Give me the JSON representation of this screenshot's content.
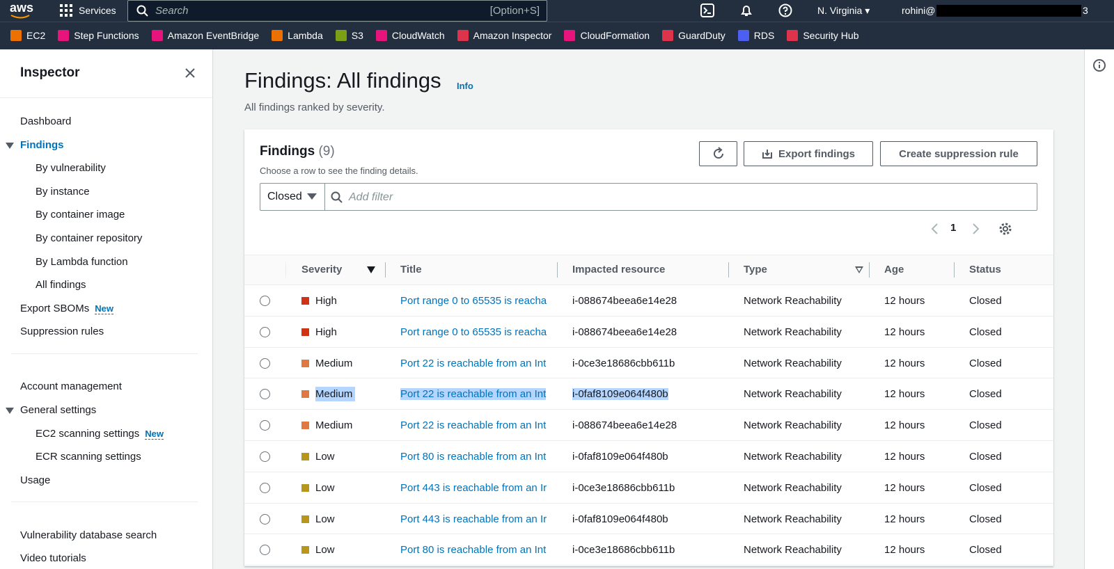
{
  "nav": {
    "logo": "aws",
    "services": "Services",
    "search_placeholder": "Search",
    "search_shortcut": "[Option+S]",
    "region": "N. Virginia",
    "user": "rohini@",
    "user_suffix": "3"
  },
  "favorites": [
    {
      "label": "EC2",
      "color": "#ed7100"
    },
    {
      "label": "Step Functions",
      "color": "#e7157b"
    },
    {
      "label": "Amazon EventBridge",
      "color": "#e7157b"
    },
    {
      "label": "Lambda",
      "color": "#ed7100"
    },
    {
      "label": "S3",
      "color": "#7aa116"
    },
    {
      "label": "CloudWatch",
      "color": "#e7157b"
    },
    {
      "label": "Amazon Inspector",
      "color": "#dd344c"
    },
    {
      "label": "CloudFormation",
      "color": "#e7157b"
    },
    {
      "label": "GuardDuty",
      "color": "#dd344c"
    },
    {
      "label": "RDS",
      "color": "#4d5ef3"
    },
    {
      "label": "Security Hub",
      "color": "#dd344c"
    }
  ],
  "sidebar": {
    "title": "Inspector",
    "sections": [
      [
        {
          "label": "Dashboard"
        },
        {
          "label": "Findings",
          "active": true,
          "children": [
            {
              "label": "By vulnerability"
            },
            {
              "label": "By instance"
            },
            {
              "label": "By container image"
            },
            {
              "label": "By container repository"
            },
            {
              "label": "By Lambda function"
            },
            {
              "label": "All findings"
            }
          ]
        },
        {
          "label": "Export SBOMs",
          "badge": "New"
        },
        {
          "label": "Suppression rules"
        }
      ],
      [
        {
          "label": "Account management"
        },
        {
          "label": "General settings",
          "children": [
            {
              "label": "EC2 scanning settings",
              "badge": "New"
            },
            {
              "label": "ECR scanning settings"
            }
          ]
        },
        {
          "label": "Usage"
        }
      ],
      [
        {
          "label": "Vulnerability database search"
        },
        {
          "label": "Video tutorials"
        }
      ]
    ]
  },
  "page": {
    "title": "Findings: All findings",
    "info": "Info",
    "subtitle": "All findings ranked by severity."
  },
  "panel": {
    "title": "Findings",
    "count": "(9)",
    "description": "Choose a row to see the finding details.",
    "export": "Export findings",
    "suppress": "Create suppression rule",
    "status_filter": "Closed",
    "filter_placeholder": "Add filter",
    "page_number": "1"
  },
  "table": {
    "columns": [
      "Severity",
      "Title",
      "Impacted resource",
      "Type",
      "Age",
      "Status"
    ],
    "severity_colors": {
      "High": "#d13212",
      "Medium": "#e07941",
      "Low": "#b8961b"
    },
    "rows": [
      [
        "High",
        "Port range 0 to 65535 is reacha",
        "i-088674beea6e14e28",
        "Network Reachability",
        "12 hours",
        "Closed"
      ],
      [
        "High",
        "Port range 0 to 65535 is reacha",
        "i-088674beea6e14e28",
        "Network Reachability",
        "12 hours",
        "Closed"
      ],
      [
        "Medium",
        "Port 22 is reachable from an Int",
        "i-0ce3e18686cbb611b",
        "Network Reachability",
        "12 hours",
        "Closed"
      ],
      [
        "Medium",
        "Port 22 is reachable from an Int",
        "i-0faf8109e064f480b",
        "Network Reachability",
        "12 hours",
        "Closed"
      ],
      [
        "Medium",
        "Port 22 is reachable from an Int",
        "i-088674beea6e14e28",
        "Network Reachability",
        "12 hours",
        "Closed"
      ],
      [
        "Low",
        "Port 80 is reachable from an Int",
        "i-0faf8109e064f480b",
        "Network Reachability",
        "12 hours",
        "Closed"
      ],
      [
        "Low",
        "Port 443 is reachable from an Ir",
        "i-0ce3e18686cbb611b",
        "Network Reachability",
        "12 hours",
        "Closed"
      ],
      [
        "Low",
        "Port 443 is reachable from an Ir",
        "i-0faf8109e064f480b",
        "Network Reachability",
        "12 hours",
        "Closed"
      ],
      [
        "Low",
        "Port 80 is reachable from an Int",
        "i-0ce3e18686cbb611b",
        "Network Reachability",
        "12 hours",
        "Closed"
      ]
    ]
  }
}
